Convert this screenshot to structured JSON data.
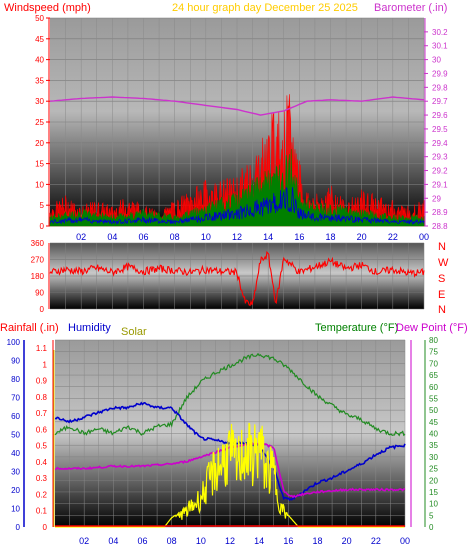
{
  "header": {
    "wind_label": "Windspeed (mph)",
    "title": "24 hour graph day   December 25 2025",
    "baro_label": "Barometer (.in)"
  },
  "mid_header": {
    "rain_label": "Rainfall (.in)",
    "humidity_label": "Humidity",
    "solar_label": "Solar",
    "temp_label": "Temperature (°F)",
    "dew_label": "Dew Point (°F)"
  },
  "compass": [
    "N",
    "W",
    "S",
    "E",
    "N"
  ],
  "colors": {
    "wind": "#ff0000",
    "wind_avg": "#008000",
    "wind_low": "#0000cc",
    "barometer": "#cc33cc",
    "direction": "#ff0000",
    "humidity": "#0000cc",
    "temperature": "#228b22",
    "dewpoint": "#cc00cc",
    "solar": "#ffff00",
    "rain": "#ff0000",
    "title": "#ffcc00",
    "background": "#ffffff"
  },
  "x_ticks": [
    "02",
    "04",
    "06",
    "08",
    "10",
    "12",
    "14",
    "16",
    "18",
    "20",
    "22",
    "00"
  ],
  "chart_data": [
    {
      "type": "line",
      "name": "wind_barometer",
      "x_hours": [
        0,
        24
      ],
      "wind_ticks": [
        "0",
        "5",
        "10",
        "15",
        "20",
        "25",
        "30",
        "35",
        "40",
        "45",
        "50"
      ],
      "baro_ticks": [
        "28.8",
        "28.9",
        "29",
        "29.1",
        "29.2",
        "29.3",
        "29.4",
        "29.5",
        "29.6",
        "29.7",
        "29.8",
        "29.9",
        "30",
        "30.1",
        "30.2"
      ],
      "ylim_wind": [
        0,
        50
      ],
      "ylim_baro": [
        28.8,
        30.3
      ],
      "series": [
        {
          "name": "Barometer",
          "points": [
            [
              0,
              29.7
            ],
            [
              2,
              29.72
            ],
            [
              4,
              29.73
            ],
            [
              6,
              29.72
            ],
            [
              8,
              29.7
            ],
            [
              10,
              29.67
            ],
            [
              12,
              29.64
            ],
            [
              13.5,
              29.6
            ],
            [
              15,
              29.63
            ],
            [
              16.5,
              29.7
            ],
            [
              18,
              29.71
            ],
            [
              20,
              29.7
            ],
            [
              22,
              29.73
            ],
            [
              24,
              29.71
            ]
          ]
        },
        {
          "name": "Windspeed",
          "points": [
            [
              0,
              4
            ],
            [
              1,
              6
            ],
            [
              2,
              4
            ],
            [
              3,
              5
            ],
            [
              4,
              4
            ],
            [
              5,
              6
            ],
            [
              6,
              4
            ],
            [
              7,
              3
            ],
            [
              8,
              5
            ],
            [
              9,
              7
            ],
            [
              10,
              9
            ],
            [
              11,
              9
            ],
            [
              12,
              10
            ],
            [
              13,
              14
            ],
            [
              14,
              20
            ],
            [
              14.5,
              24
            ],
            [
              15,
              22
            ],
            [
              15.3,
              27
            ],
            [
              15.8,
              18
            ],
            [
              16.3,
              8
            ],
            [
              17,
              6
            ],
            [
              18,
              8
            ],
            [
              19,
              5
            ],
            [
              20,
              7
            ],
            [
              21,
              6
            ],
            [
              22,
              5
            ],
            [
              23,
              4
            ],
            [
              24,
              5
            ]
          ]
        },
        {
          "name": "Average",
          "points": [
            [
              0,
              2
            ],
            [
              2,
              3
            ],
            [
              4,
              2
            ],
            [
              6,
              3
            ],
            [
              8,
              2
            ],
            [
              10,
              4
            ],
            [
              12,
              6
            ],
            [
              13,
              8
            ],
            [
              14,
              10
            ],
            [
              15,
              12
            ],
            [
              15.5,
              14
            ],
            [
              16,
              6
            ],
            [
              17,
              4
            ],
            [
              18,
              4
            ],
            [
              20,
              3
            ],
            [
              22,
              2
            ],
            [
              24,
              2
            ]
          ]
        }
      ]
    },
    {
      "type": "line",
      "name": "wind_direction",
      "x_hours": [
        0,
        24
      ],
      "y_ticks": [
        "360",
        "270",
        "180",
        "90",
        "0"
      ],
      "ylim": [
        0,
        360
      ],
      "series": [
        {
          "name": "Direction",
          "points": [
            [
              0,
              200
            ],
            [
              1,
              215
            ],
            [
              2,
              205
            ],
            [
              3,
              225
            ],
            [
              4,
              200
            ],
            [
              5,
              230
            ],
            [
              6,
              205
            ],
            [
              7,
              220
            ],
            [
              8,
              210
            ],
            [
              9,
              200
            ],
            [
              10,
              215
            ],
            [
              11,
              205
            ],
            [
              12,
              200
            ],
            [
              12.5,
              40
            ],
            [
              13,
              20
            ],
            [
              13.5,
              260
            ],
            [
              14,
              300
            ],
            [
              14.5,
              30
            ],
            [
              15,
              280
            ],
            [
              16,
              200
            ],
            [
              17,
              230
            ],
            [
              18,
              260
            ],
            [
              19,
              220
            ],
            [
              20,
              240
            ],
            [
              21,
              200
            ],
            [
              22,
              215
            ],
            [
              23,
              195
            ],
            [
              24,
              200
            ]
          ]
        }
      ]
    },
    {
      "type": "line",
      "name": "temp_humidity_solar_rain",
      "x_hours": [
        0,
        24
      ],
      "rain_ticks": [
        "0",
        "0.1",
        "0.2",
        "0.3",
        "0.4",
        "0.5",
        "0.6",
        "0.7",
        "0.8",
        "0.9",
        "1",
        "1.1"
      ],
      "humidity_ticks": [
        "0",
        "10",
        "20",
        "30",
        "40",
        "50",
        "60",
        "70",
        "80",
        "90",
        "100"
      ],
      "temp_ticks": [
        "0",
        "5",
        "10",
        "15",
        "20",
        "25",
        "30",
        "35",
        "40",
        "45",
        "50",
        "55",
        "60",
        "65",
        "70",
        "75",
        "80"
      ],
      "ylim_temp": [
        0,
        80
      ],
      "series": [
        {
          "name": "Temperature",
          "points": [
            [
              0,
              40
            ],
            [
              1,
              43
            ],
            [
              2,
              40
            ],
            [
              3,
              42
            ],
            [
              4,
              40
            ],
            [
              5,
              43
            ],
            [
              6,
              40
            ],
            [
              7,
              43
            ],
            [
              8,
              44
            ],
            [
              9,
              55
            ],
            [
              10,
              62
            ],
            [
              11,
              66
            ],
            [
              12,
              69
            ],
            [
              13,
              72
            ],
            [
              14,
              74
            ],
            [
              15,
              72
            ],
            [
              16,
              68
            ],
            [
              17,
              62
            ],
            [
              18,
              56
            ],
            [
              19,
              52
            ],
            [
              20,
              48
            ],
            [
              21,
              46
            ],
            [
              22,
              42
            ],
            [
              23,
              40
            ],
            [
              24,
              40
            ]
          ]
        },
        {
          "name": "Humidity",
          "points": [
            [
              0,
              47
            ],
            [
              1,
              45
            ],
            [
              2,
              47
            ],
            [
              3,
              49
            ],
            [
              4,
              51
            ],
            [
              5,
              51
            ],
            [
              6,
              53
            ],
            [
              7,
              51
            ],
            [
              8,
              51
            ],
            [
              9,
              44
            ],
            [
              10,
              38
            ],
            [
              11,
              37
            ],
            [
              12,
              36
            ],
            [
              13,
              36
            ],
            [
              14,
              35
            ],
            [
              15,
              25
            ],
            [
              15.7,
              12
            ],
            [
              16.3,
              12
            ],
            [
              17,
              15
            ],
            [
              18,
              19
            ],
            [
              19,
              21
            ],
            [
              20,
              24
            ],
            [
              21,
              27
            ],
            [
              22,
              31
            ],
            [
              23,
              34
            ],
            [
              24,
              35
            ]
          ]
        },
        {
          "name": "Dew Point",
          "points": [
            [
              0,
              25
            ],
            [
              2,
              25
            ],
            [
              4,
              26
            ],
            [
              6,
              26
            ],
            [
              8,
              27
            ],
            [
              9,
              28
            ],
            [
              10,
              30
            ],
            [
              11,
              32
            ],
            [
              12,
              34
            ],
            [
              13,
              35
            ],
            [
              14,
              36
            ],
            [
              15,
              34
            ],
            [
              15.7,
              15
            ],
            [
              16.3,
              13
            ],
            [
              17,
              14
            ],
            [
              18,
              15
            ],
            [
              20,
              16
            ],
            [
              22,
              16
            ],
            [
              24,
              16
            ]
          ]
        },
        {
          "name": "Solar",
          "points": [
            [
              0,
              0
            ],
            [
              7.5,
              0
            ],
            [
              8,
              4
            ],
            [
              9,
              8
            ],
            [
              10,
              15
            ],
            [
              11,
              30
            ],
            [
              12,
              38
            ],
            [
              12.5,
              32
            ],
            [
              13,
              40
            ],
            [
              13.5,
              36
            ],
            [
              14,
              42
            ],
            [
              14.5,
              30
            ],
            [
              15,
              28
            ],
            [
              15.5,
              10
            ],
            [
              16,
              5
            ],
            [
              16.7,
              0
            ],
            [
              24,
              0
            ]
          ]
        },
        {
          "name": "Rainfall",
          "points": [
            [
              0,
              0
            ],
            [
              24,
              0
            ]
          ]
        }
      ]
    }
  ]
}
